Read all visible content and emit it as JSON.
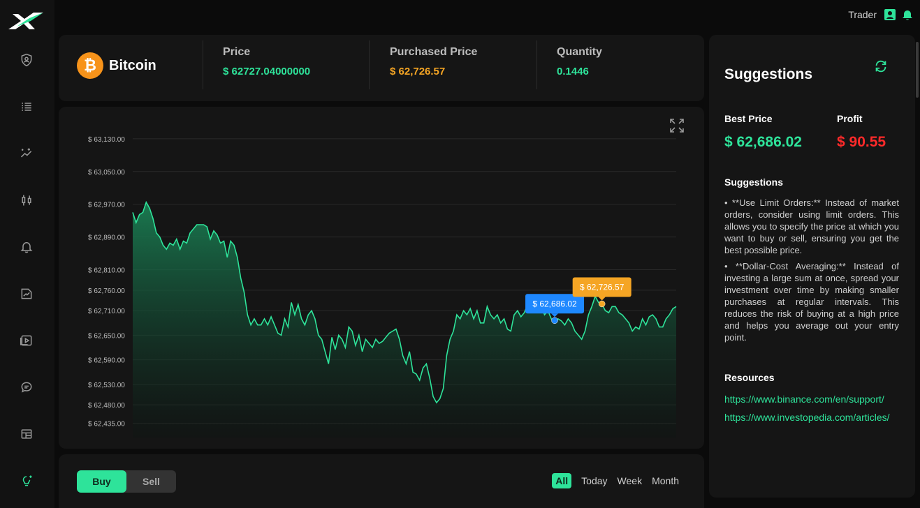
{
  "colors": {
    "accent": "#2ee39a",
    "price_green": "#2ee39a",
    "purchased_orange": "#f5a524",
    "profit_red": "#ff2a2a",
    "best_blue": "#1e88ff",
    "bitcoin_orange": "#f7931a"
  },
  "header": {
    "user_label": "Trader",
    "icons": [
      "user-icon",
      "bell-icon"
    ]
  },
  "sidebar": {
    "icons": [
      "shield-user-icon",
      "list-icon",
      "sparkle-chart-icon",
      "candlestick-icon",
      "bell-icon",
      "image-chart-icon",
      "play-icon",
      "chat-icon",
      "table-icon",
      "lightbulb-icon"
    ]
  },
  "coin": {
    "name": "Bitcoin",
    "symbol": "₿"
  },
  "stats": {
    "price_label": "Price",
    "price_value": "$ 62727.04000000",
    "purchased_label": "Purchased Price",
    "purchased_value": "$ 62,726.57",
    "quantity_label": "Quantity",
    "quantity_value": "0.1446"
  },
  "chart_data": {
    "type": "area",
    "y_ticks": [
      "$ 63,130.00",
      "$ 63,050.00",
      "$ 62,970.00",
      "$ 62,890.00",
      "$ 62,810.00",
      "$ 62,760.00",
      "$ 62,710.00",
      "$ 62,650.00",
      "$ 62,590.00",
      "$ 62,530.00",
      "$ 62,480.00",
      "$ 62,435.00"
    ],
    "y_tick_values": [
      63130,
      63050,
      62970,
      62890,
      62810,
      62760,
      62710,
      62650,
      62590,
      62530,
      62480,
      62435
    ],
    "ylim": [
      62400,
      63140
    ],
    "values": [
      62950,
      62925,
      62945,
      62950,
      62975,
      62960,
      62935,
      62900,
      62890,
      62870,
      62860,
      62875,
      62870,
      62885,
      62860,
      62880,
      62875,
      62900,
      62910,
      62920,
      62920,
      62920,
      62915,
      62885,
      62905,
      62895,
      62875,
      62880,
      62840,
      62880,
      62870,
      62840,
      62790,
      62755,
      62700,
      62675,
      62690,
      62675,
      62675,
      62690,
      62675,
      62695,
      62675,
      62655,
      62650,
      62690,
      62670,
      62730,
      62700,
      62725,
      62690,
      62675,
      62700,
      62710,
      62690,
      62650,
      62640,
      62610,
      62580,
      62645,
      62615,
      62650,
      62640,
      62620,
      62670,
      62660,
      62625,
      62650,
      62610,
      62640,
      62630,
      62620,
      62640,
      62630,
      62635,
      62645,
      62655,
      62660,
      62665,
      62640,
      62600,
      62580,
      62610,
      62560,
      62555,
      62540,
      62570,
      62580,
      62545,
      62500,
      62485,
      62495,
      62520,
      62600,
      62640,
      62660,
      62700,
      62690,
      62710,
      62700,
      62715,
      62690,
      62710,
      62680,
      62680,
      62720,
      62700,
      62690,
      62700,
      62680,
      62690,
      62665,
      62660,
      62700,
      62710,
      62695,
      62705,
      62725,
      62720,
      62715,
      62730,
      62722,
      62700,
      62710,
      62690,
      62686,
      62690,
      62685,
      62675,
      62690,
      62680,
      62660,
      62650,
      62640,
      62660,
      62700,
      62720,
      62745,
      62730,
      62726,
      62710,
      62705,
      62720,
      62720,
      62705,
      62700,
      62690,
      62680,
      62660,
      62670,
      62665,
      62690,
      62675,
      62695,
      62700,
      62690,
      62670,
      62670,
      62690,
      62700,
      62715,
      62720
    ],
    "markers": [
      {
        "label": "$ 62,686.02",
        "value": 62686.02,
        "index": 125,
        "color": "#1e88ff"
      },
      {
        "label": "$ 62,726.57",
        "value": 62726.57,
        "index": 139,
        "color": "#f5a524"
      }
    ],
    "grid": true
  },
  "controls": {
    "buy_label": "Buy",
    "sell_label": "Sell",
    "ranges": [
      "All",
      "Today",
      "Week",
      "Month"
    ],
    "active_range": "All"
  },
  "suggestions": {
    "title": "Suggestions",
    "best_price_label": "Best Price",
    "best_price_value": "$ 62,686.02",
    "profit_label": "Profit",
    "profit_value": "$ 90.55",
    "subtitle": "Suggestions",
    "items": [
      "• **Use Limit Orders:** Instead of market orders, consider using limit orders. This allows you to specify the price at which you want to buy or sell, ensuring you get the best possible price.",
      "• **Dollar-Cost Averaging:** Instead of investing a large sum at once, spread your investment over time by making smaller purchases at regular intervals. This reduces the risk of buying at a high price and helps you average out your entry point."
    ],
    "resources_label": "Resources",
    "links": [
      "https://www.binance.com/en/support/",
      "https://www.investopedia.com/articles/"
    ]
  }
}
